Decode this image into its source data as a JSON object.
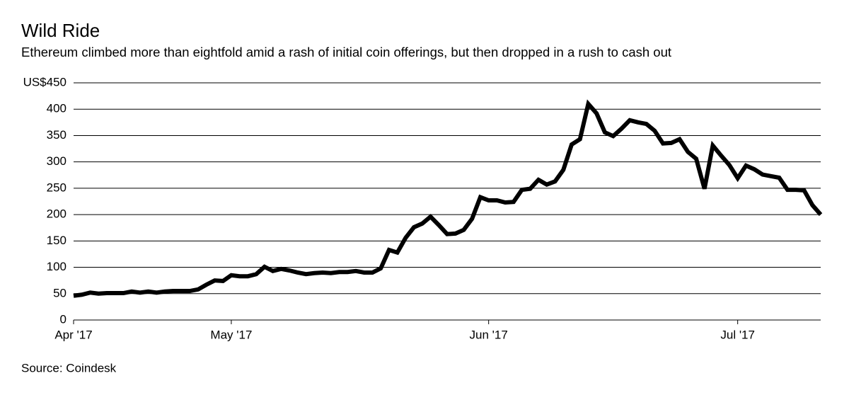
{
  "chart_data": {
    "type": "line",
    "title": "Wild Ride",
    "subtitle": "Ethereum climbed more than eightfold amid a rash of initial coin offerings, but then dropped in a rush to cash out",
    "source": "Source: Coindesk",
    "x": [
      11,
      12,
      13,
      14,
      15,
      16,
      17,
      18,
      19,
      20,
      21,
      22,
      23,
      24,
      25,
      26,
      27,
      28,
      29,
      30,
      31,
      32,
      33,
      34,
      35,
      36,
      37,
      38,
      39,
      40,
      41,
      42,
      43,
      44,
      45,
      46,
      47,
      48,
      49,
      50,
      51,
      52,
      53,
      54,
      55,
      56,
      57,
      58,
      59,
      60,
      61,
      62,
      63,
      64,
      65,
      66,
      67,
      68,
      69,
      70,
      71,
      72,
      73,
      74,
      75,
      76,
      77,
      78,
      79,
      80,
      81,
      82,
      83,
      84,
      85,
      86,
      87,
      88,
      89,
      90,
      91,
      92,
      93,
      94,
      95,
      96,
      97,
      98,
      99,
      100,
      101
    ],
    "series": [
      {
        "name": "Ethereum",
        "color": "#000000",
        "values": [
          46,
          48,
          52,
          50,
          51,
          51,
          51,
          54,
          52,
          54,
          52,
          54,
          55,
          55,
          55,
          58,
          67,
          75,
          74,
          85,
          83,
          83,
          87,
          101,
          93,
          97,
          94,
          90,
          87,
          89,
          90,
          89,
          91,
          91,
          93,
          90,
          90,
          98,
          133,
          128,
          156,
          176,
          183,
          196,
          180,
          163,
          164,
          171,
          192,
          233,
          227,
          227,
          223,
          224,
          247,
          249,
          266,
          257,
          263,
          285,
          333,
          343,
          410,
          392,
          356,
          349,
          363,
          379,
          375,
          372,
          359,
          335,
          336,
          343,
          319,
          306,
          249,
          331,
          312,
          294,
          269,
          293,
          286,
          276,
          273,
          270,
          247,
          247,
          246,
          218,
          200
        ]
      }
    ],
    "xlim": [
      11,
      101
    ],
    "xticks": [
      {
        "value": 11,
        "label": "Apr '17"
      },
      {
        "value": 30,
        "label": "May '17"
      },
      {
        "value": 61,
        "label": "Jun '17"
      },
      {
        "value": 91,
        "label": "Jul '17"
      }
    ],
    "ylim": [
      0,
      450
    ],
    "yticks": [
      0,
      50,
      100,
      150,
      200,
      250,
      300,
      350,
      400,
      {
        "value": 450,
        "label": "US$450"
      }
    ],
    "grid": true
  }
}
